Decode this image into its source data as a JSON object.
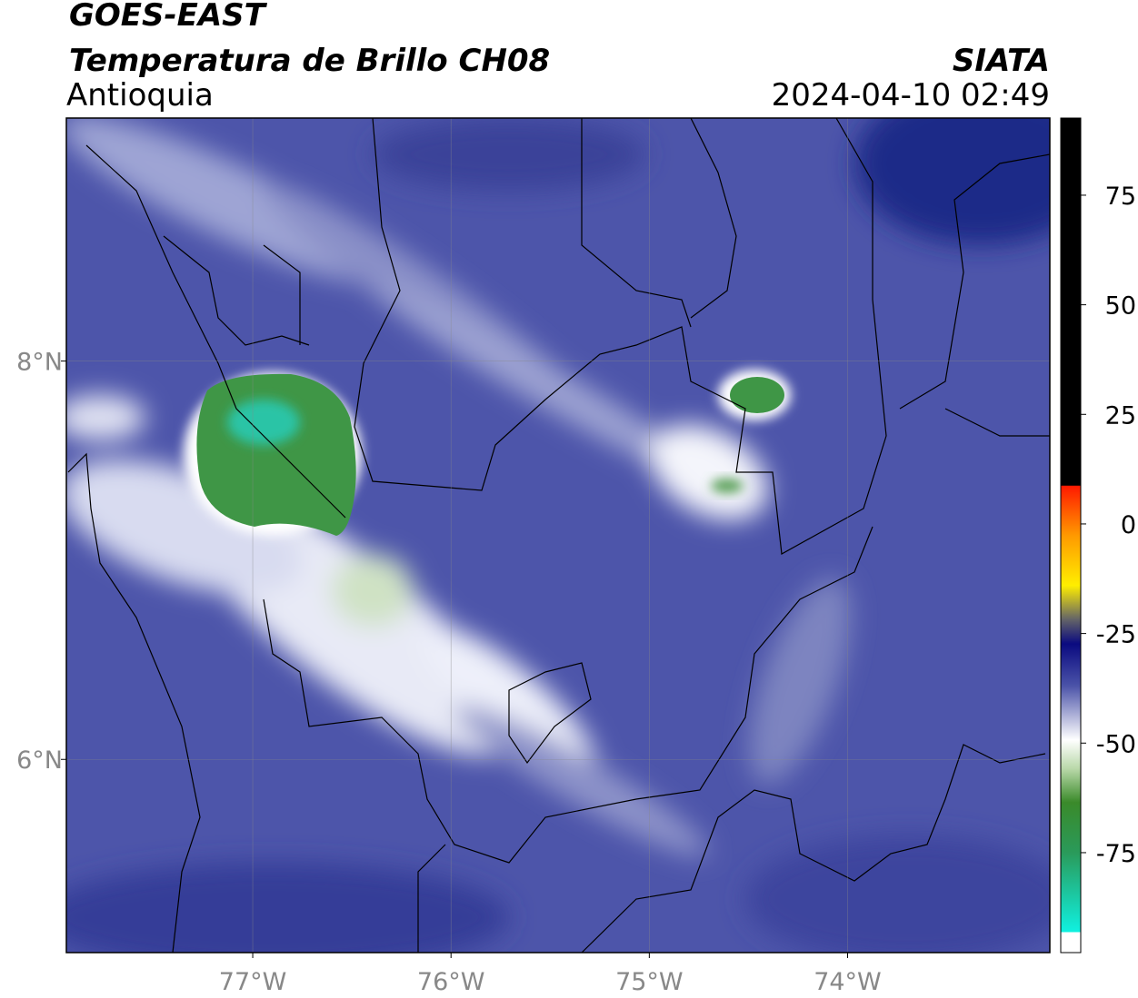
{
  "header": {
    "satellite": "GOES-EAST",
    "product": "Temperatura de Brillo CH08",
    "source": "SIATA",
    "region": "Antioquia",
    "datetime": "2024-04-10 02:49"
  },
  "map": {
    "xlim": [
      -77.94,
      -72.98
    ],
    "ylim": [
      5.03,
      9.22
    ],
    "xticks": [
      {
        "value": -77,
        "label": "77°W"
      },
      {
        "value": -76,
        "label": "76°W"
      },
      {
        "value": -75,
        "label": "75°W"
      },
      {
        "value": -74,
        "label": "74°W"
      }
    ],
    "yticks": [
      {
        "value": 8,
        "label": "8°N"
      },
      {
        "value": 6,
        "label": "6°N"
      }
    ],
    "grid": true
  },
  "colorbar": {
    "lim": [
      -97.8,
      92.6
    ],
    "ticks": [
      75,
      50,
      25,
      0,
      -25,
      -50,
      -75
    ]
  }
}
